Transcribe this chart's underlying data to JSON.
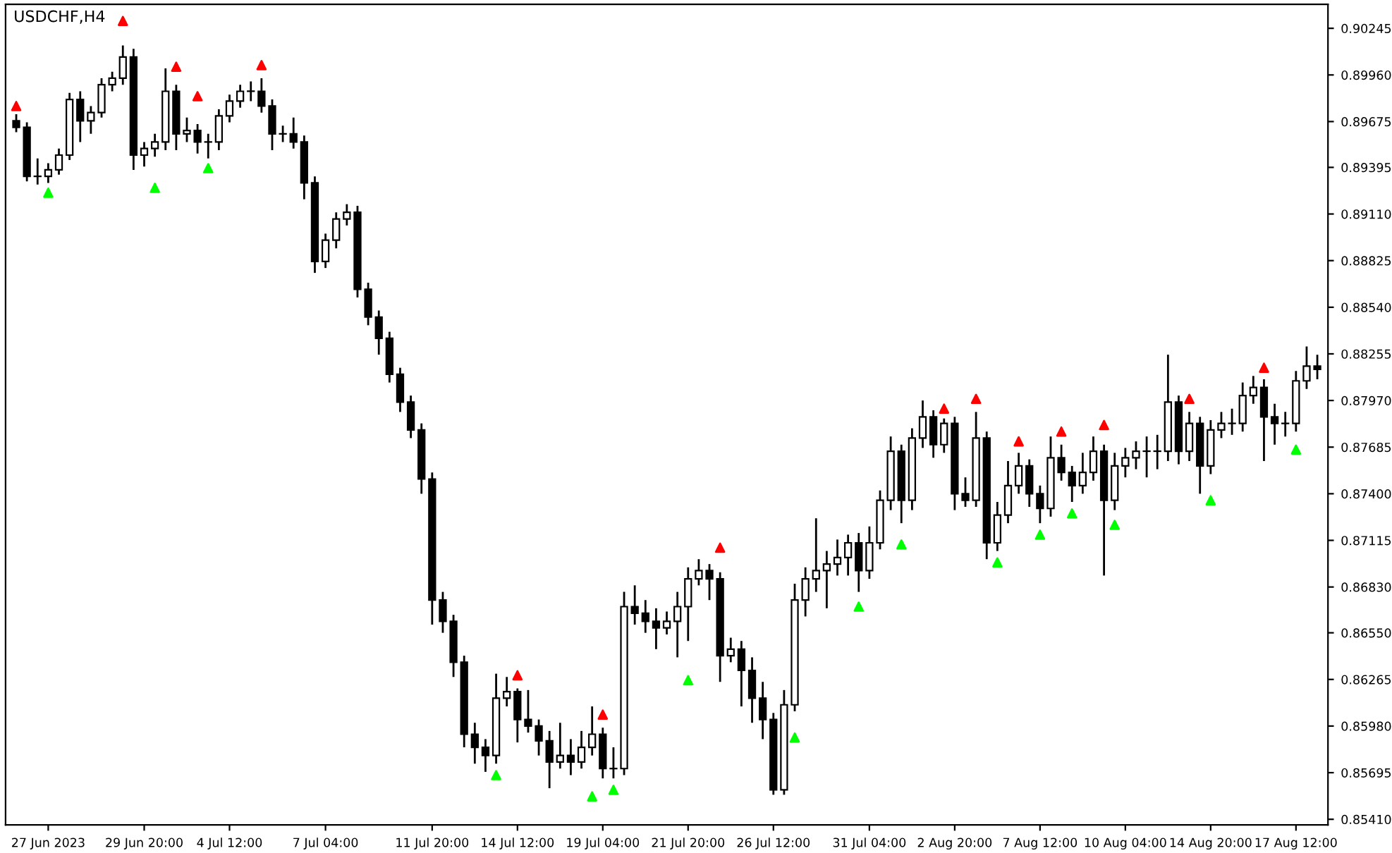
{
  "chart_data": {
    "type": "candlestick",
    "title": "USDCHF,H4",
    "categories": [
      null,
      null,
      null,
      "27 Jun 2023",
      null,
      null,
      null,
      null,
      null,
      null,
      null,
      null,
      "29 Jun 20:00",
      null,
      null,
      null,
      null,
      null,
      null,
      null,
      "4 Jul 12:00",
      null,
      null,
      null,
      null,
      null,
      null,
      null,
      null,
      "7 Jul 04:00",
      null,
      null,
      null,
      null,
      null,
      null,
      null,
      null,
      null,
      "11 Jul 20:00",
      null,
      null,
      null,
      null,
      null,
      null,
      null,
      "14 Jul 12:00",
      null,
      null,
      null,
      null,
      null,
      null,
      null,
      "19 Jul 04:00",
      null,
      null,
      null,
      null,
      null,
      null,
      null,
      "21 Jul 20:00",
      null,
      null,
      null,
      null,
      null,
      null,
      null,
      "26 Jul 12:00",
      null,
      null,
      null,
      null,
      null,
      null,
      null,
      null,
      "31 Jul 04:00",
      null,
      null,
      null,
      null,
      null,
      null,
      null,
      "2 Aug 20:00",
      null,
      null,
      null,
      null,
      null,
      null,
      null,
      "7 Aug 12:00",
      null,
      null,
      null,
      null,
      null,
      null,
      null,
      "10 Aug 04:00",
      null,
      null,
      null,
      null,
      null,
      null,
      null,
      "14 Aug 20:00",
      null,
      null,
      null,
      null,
      null,
      null,
      null,
      "17 Aug 12:00",
      null,
      null
    ],
    "ohlc": [
      [
        0.8968,
        0.8972,
        0.8961,
        0.8964
      ],
      [
        0.8964,
        0.8967,
        0.8931,
        0.8934
      ],
      [
        0.8934,
        0.8945,
        0.8929,
        0.8934
      ],
      [
        0.8934,
        0.8942,
        0.893,
        0.8938
      ],
      [
        0.8938,
        0.8951,
        0.8935,
        0.8947
      ],
      [
        0.8947,
        0.8985,
        0.8944,
        0.8981
      ],
      [
        0.8981,
        0.8986,
        0.8955,
        0.8968
      ],
      [
        0.8968,
        0.8977,
        0.896,
        0.8973
      ],
      [
        0.8973,
        0.8994,
        0.897,
        0.899
      ],
      [
        0.899,
        0.8998,
        0.8986,
        0.8994
      ],
      [
        0.8994,
        0.9014,
        0.899,
        0.9007
      ],
      [
        0.9007,
        0.9012,
        0.8938,
        0.8947
      ],
      [
        0.8947,
        0.8955,
        0.894,
        0.8951
      ],
      [
        0.8951,
        0.896,
        0.8946,
        0.8955
      ],
      [
        0.8955,
        0.9,
        0.895,
        0.8986
      ],
      [
        0.8986,
        0.899,
        0.895,
        0.896
      ],
      [
        0.896,
        0.897,
        0.8955,
        0.8962
      ],
      [
        0.8962,
        0.8966,
        0.8948,
        0.8955
      ],
      [
        0.8955,
        0.896,
        0.8945,
        0.8955
      ],
      [
        0.8955,
        0.8975,
        0.895,
        0.8971
      ],
      [
        0.8971,
        0.8984,
        0.8967,
        0.898
      ],
      [
        0.898,
        0.899,
        0.8976,
        0.8986
      ],
      [
        0.8986,
        0.8992,
        0.898,
        0.8986
      ],
      [
        0.8986,
        0.8994,
        0.8973,
        0.8977
      ],
      [
        0.8977,
        0.8981,
        0.895,
        0.896
      ],
      [
        0.896,
        0.8965,
        0.8955,
        0.896
      ],
      [
        0.896,
        0.897,
        0.8951,
        0.8955
      ],
      [
        0.8955,
        0.8959,
        0.892,
        0.893
      ],
      [
        0.893,
        0.8934,
        0.8875,
        0.8882
      ],
      [
        0.8882,
        0.8899,
        0.8878,
        0.8895
      ],
      [
        0.8895,
        0.8912,
        0.889,
        0.8908
      ],
      [
        0.8908,
        0.8917,
        0.8904,
        0.8912
      ],
      [
        0.8912,
        0.8916,
        0.886,
        0.8865
      ],
      [
        0.8865,
        0.8869,
        0.8843,
        0.8848
      ],
      [
        0.8848,
        0.8852,
        0.8825,
        0.8835
      ],
      [
        0.8835,
        0.8839,
        0.8808,
        0.8813
      ],
      [
        0.8813,
        0.8817,
        0.879,
        0.8796
      ],
      [
        0.8796,
        0.88,
        0.8774,
        0.8779
      ],
      [
        0.8779,
        0.8783,
        0.874,
        0.8749
      ],
      [
        0.8749,
        0.8753,
        0.866,
        0.8675
      ],
      [
        0.8675,
        0.868,
        0.8655,
        0.8662
      ],
      [
        0.8662,
        0.8666,
        0.8628,
        0.8637
      ],
      [
        0.8637,
        0.8641,
        0.8585,
        0.8593
      ],
      [
        0.8593,
        0.86,
        0.8575,
        0.8585
      ],
      [
        0.8585,
        0.859,
        0.857,
        0.858
      ],
      [
        0.858,
        0.863,
        0.8575,
        0.8615
      ],
      [
        0.8615,
        0.8628,
        0.861,
        0.8619
      ],
      [
        0.8619,
        0.8621,
        0.8588,
        0.8602
      ],
      [
        0.8602,
        0.862,
        0.8594,
        0.8598
      ],
      [
        0.8598,
        0.8602,
        0.858,
        0.8589
      ],
      [
        0.8589,
        0.8595,
        0.856,
        0.8576
      ],
      [
        0.8576,
        0.86,
        0.8572,
        0.858
      ],
      [
        0.858,
        0.859,
        0.8568,
        0.8576
      ],
      [
        0.8576,
        0.8595,
        0.8572,
        0.8585
      ],
      [
        0.8585,
        0.861,
        0.858,
        0.8593
      ],
      [
        0.8593,
        0.8597,
        0.8566,
        0.8572
      ],
      [
        0.8572,
        0.8585,
        0.8566,
        0.8572
      ],
      [
        0.8572,
        0.868,
        0.8568,
        0.8671
      ],
      [
        0.8671,
        0.8684,
        0.866,
        0.8667
      ],
      [
        0.8667,
        0.8675,
        0.8655,
        0.8662
      ],
      [
        0.8662,
        0.867,
        0.8645,
        0.8658
      ],
      [
        0.8658,
        0.8668,
        0.8654,
        0.8662
      ],
      [
        0.8662,
        0.868,
        0.864,
        0.8671
      ],
      [
        0.8671,
        0.8695,
        0.865,
        0.8688
      ],
      [
        0.8688,
        0.87,
        0.8684,
        0.8693
      ],
      [
        0.8693,
        0.8697,
        0.8675,
        0.8688
      ],
      [
        0.8688,
        0.8692,
        0.8625,
        0.8641
      ],
      [
        0.8641,
        0.8652,
        0.8637,
        0.8645
      ],
      [
        0.8645,
        0.865,
        0.861,
        0.8632
      ],
      [
        0.8632,
        0.864,
        0.86,
        0.8615
      ],
      [
        0.8615,
        0.8625,
        0.859,
        0.8602
      ],
      [
        0.8602,
        0.8606,
        0.8556,
        0.8559
      ],
      [
        0.8559,
        0.862,
        0.8556,
        0.8611
      ],
      [
        0.8611,
        0.8685,
        0.8607,
        0.8675
      ],
      [
        0.8675,
        0.8695,
        0.8665,
        0.8688
      ],
      [
        0.8688,
        0.8725,
        0.868,
        0.8693
      ],
      [
        0.8693,
        0.8705,
        0.867,
        0.8697
      ],
      [
        0.8697,
        0.8712,
        0.869,
        0.8701
      ],
      [
        0.8701,
        0.8715,
        0.869,
        0.871
      ],
      [
        0.871,
        0.8716,
        0.868,
        0.8693
      ],
      [
        0.8693,
        0.872,
        0.8688,
        0.871
      ],
      [
        0.871,
        0.8742,
        0.8706,
        0.8736
      ],
      [
        0.8736,
        0.8775,
        0.873,
        0.8766
      ],
      [
        0.8766,
        0.877,
        0.8722,
        0.8736
      ],
      [
        0.8736,
        0.878,
        0.873,
        0.8774
      ],
      [
        0.8774,
        0.8797,
        0.8768,
        0.8787
      ],
      [
        0.8787,
        0.8791,
        0.8762,
        0.877
      ],
      [
        0.877,
        0.8786,
        0.8765,
        0.8783
      ],
      [
        0.8783,
        0.8787,
        0.873,
        0.874
      ],
      [
        0.874,
        0.875,
        0.8732,
        0.8736
      ],
      [
        0.8736,
        0.879,
        0.8732,
        0.8774
      ],
      [
        0.8774,
        0.8778,
        0.87,
        0.871
      ],
      [
        0.871,
        0.8735,
        0.8705,
        0.8727
      ],
      [
        0.8727,
        0.876,
        0.8722,
        0.8745
      ],
      [
        0.8745,
        0.8765,
        0.874,
        0.8757
      ],
      [
        0.8757,
        0.8761,
        0.8732,
        0.874
      ],
      [
        0.874,
        0.8745,
        0.8722,
        0.8731
      ],
      [
        0.8731,
        0.8775,
        0.8726,
        0.8762
      ],
      [
        0.8762,
        0.877,
        0.8748,
        0.8753
      ],
      [
        0.8753,
        0.8757,
        0.8735,
        0.8745
      ],
      [
        0.8745,
        0.8765,
        0.874,
        0.8753
      ],
      [
        0.8753,
        0.8775,
        0.8748,
        0.8766
      ],
      [
        0.8766,
        0.877,
        0.869,
        0.8736
      ],
      [
        0.8736,
        0.8765,
        0.873,
        0.8757
      ],
      [
        0.8757,
        0.8768,
        0.875,
        0.8762
      ],
      [
        0.8762,
        0.8772,
        0.8755,
        0.8766
      ],
      [
        0.8766,
        0.8775,
        0.875,
        0.8766
      ],
      [
        0.8766,
        0.8776,
        0.8755,
        0.8766
      ],
      [
        0.8766,
        0.8825,
        0.876,
        0.8796
      ],
      [
        0.8796,
        0.88,
        0.8758,
        0.8766
      ],
      [
        0.8766,
        0.879,
        0.876,
        0.8783
      ],
      [
        0.8783,
        0.8787,
        0.874,
        0.8757
      ],
      [
        0.8757,
        0.8785,
        0.8752,
        0.8779
      ],
      [
        0.8779,
        0.879,
        0.8774,
        0.8783
      ],
      [
        0.8783,
        0.8792,
        0.8776,
        0.8783
      ],
      [
        0.8783,
        0.8808,
        0.8778,
        0.88
      ],
      [
        0.88,
        0.8812,
        0.8795,
        0.8805
      ],
      [
        0.8805,
        0.881,
        0.876,
        0.8787
      ],
      [
        0.8787,
        0.8795,
        0.877,
        0.8783
      ],
      [
        0.8783,
        0.879,
        0.8775,
        0.8783
      ],
      [
        0.8783,
        0.8815,
        0.8778,
        0.8809
      ],
      [
        0.8809,
        0.883,
        0.8804,
        0.8818
      ],
      [
        0.8818,
        0.8825,
        0.881,
        0.8816
      ]
    ],
    "series": [
      {
        "type": "scatter",
        "color": "#ff0000",
        "marker": "triangle",
        "values": [
          0.8977,
          null,
          null,
          null,
          null,
          null,
          null,
          null,
          null,
          null,
          0.9029,
          null,
          null,
          null,
          null,
          0.9001,
          null,
          0.8983,
          null,
          null,
          null,
          null,
          null,
          0.9002,
          null,
          null,
          null,
          null,
          null,
          null,
          null,
          null,
          null,
          null,
          null,
          null,
          null,
          null,
          null,
          null,
          null,
          null,
          null,
          null,
          null,
          null,
          null,
          0.8629,
          null,
          null,
          null,
          null,
          null,
          null,
          null,
          0.8605,
          null,
          null,
          null,
          null,
          null,
          null,
          null,
          null,
          null,
          null,
          0.8707,
          null,
          null,
          null,
          null,
          null,
          null,
          null,
          null,
          null,
          null,
          null,
          null,
          null,
          null,
          null,
          null,
          null,
          null,
          null,
          null,
          0.8792,
          null,
          null,
          0.8798,
          null,
          null,
          null,
          0.8772,
          null,
          null,
          null,
          0.8778,
          null,
          null,
          null,
          0.8782,
          null,
          null,
          null,
          null,
          null,
          null,
          null,
          0.8798,
          null,
          null,
          null,
          null,
          null,
          null,
          0.8817,
          null,
          null,
          null,
          null,
          null
        ]
      },
      {
        "type": "scatter",
        "color": "#00ff00",
        "marker": "triangle",
        "values": [
          null,
          null,
          null,
          0.8924,
          null,
          null,
          null,
          null,
          null,
          null,
          null,
          null,
          null,
          0.8927,
          null,
          null,
          null,
          null,
          0.8939,
          null,
          null,
          null,
          null,
          null,
          null,
          null,
          null,
          null,
          null,
          null,
          null,
          null,
          null,
          null,
          null,
          null,
          null,
          null,
          null,
          null,
          null,
          null,
          null,
          null,
          null,
          0.8568,
          null,
          null,
          null,
          null,
          null,
          null,
          null,
          null,
          0.8555,
          null,
          0.8559,
          null,
          null,
          null,
          null,
          null,
          null,
          0.8626,
          null,
          null,
          null,
          null,
          null,
          null,
          null,
          null,
          null,
          0.8591,
          null,
          null,
          null,
          null,
          null,
          0.8671,
          null,
          null,
          null,
          0.8709,
          null,
          null,
          null,
          null,
          null,
          null,
          null,
          null,
          0.8698,
          null,
          null,
          null,
          0.8715,
          null,
          null,
          0.8728,
          null,
          null,
          null,
          0.8721,
          null,
          null,
          null,
          null,
          null,
          null,
          null,
          null,
          0.8736,
          null,
          null,
          null,
          null,
          null,
          null,
          null,
          0.8767,
          null,
          null
        ]
      }
    ],
    "ylim": [
      0.85376,
      0.90392
    ],
    "yticks": [
      {
        "value": 0.8541,
        "label": "0.85410"
      },
      {
        "value": 0.85695,
        "label": "0.85695"
      },
      {
        "value": 0.8598,
        "label": "0.85980"
      },
      {
        "value": 0.86265,
        "label": "0.86265"
      },
      {
        "value": 0.8655,
        "label": "0.86550"
      },
      {
        "value": 0.8683,
        "label": "0.86830"
      },
      {
        "value": 0.87115,
        "label": "0.87115"
      },
      {
        "value": 0.874,
        "label": "0.87400"
      },
      {
        "value": 0.87685,
        "label": "0.87685"
      },
      {
        "value": 0.8797,
        "label": "0.87970"
      },
      {
        "value": 0.88255,
        "label": "0.88255"
      },
      {
        "value": 0.8854,
        "label": "0.88540"
      },
      {
        "value": 0.88825,
        "label": "0.88825"
      },
      {
        "value": 0.8911,
        "label": "0.89110"
      },
      {
        "value": 0.89395,
        "label": "0.89395"
      },
      {
        "value": 0.89675,
        "label": "0.89675"
      },
      {
        "value": 0.8996,
        "label": "0.89960"
      },
      {
        "value": 0.90245,
        "label": "0.90245"
      }
    ]
  }
}
